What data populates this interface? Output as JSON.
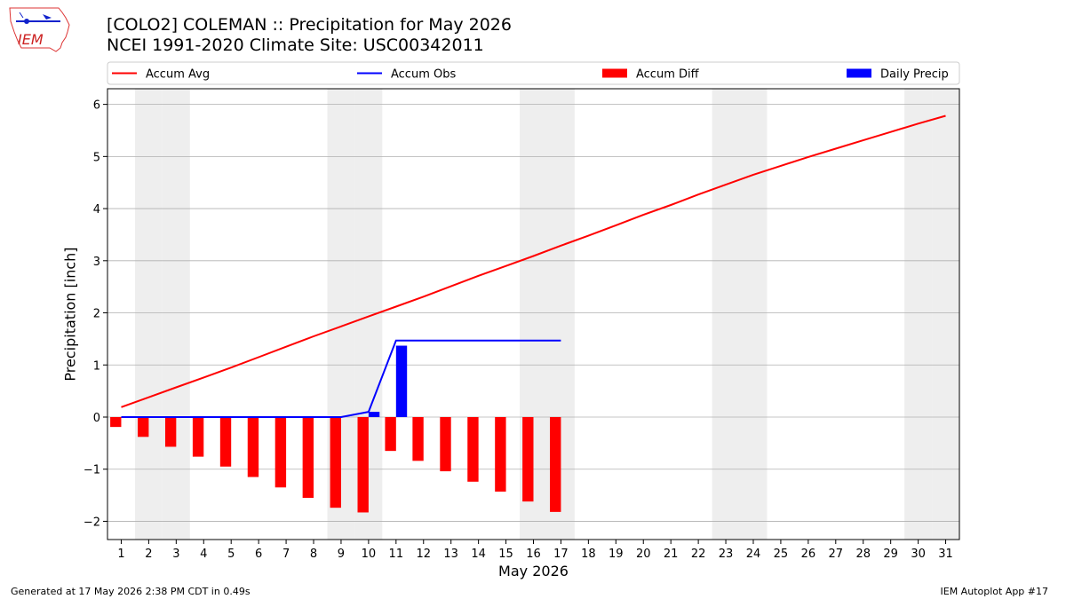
{
  "header": {
    "title": "[COLO2] COLEMAN :: Precipitation for May 2026",
    "subtitle": "NCEI 1991-2020 Climate Site: USC00342011",
    "logo_text": "IEM"
  },
  "footer": {
    "generated": "Generated at 17 May 2026 2:38 PM CDT in 0.49s",
    "app": "IEM Autoplot App #17"
  },
  "colors": {
    "accum_avg": "#ff0000",
    "accum_obs": "#0000ff",
    "accum_diff": "#ff0000",
    "daily_precip": "#0000ff",
    "weekend_shade": "#eeeeee",
    "grid": "#b0b0b0"
  },
  "chart_data": {
    "type": "bar",
    "title": "[COLO2] COLEMAN :: Precipitation for May 2026",
    "xlabel": "May 2026",
    "ylabel": "Precipitation [inch]",
    "x": [
      1,
      2,
      3,
      4,
      5,
      6,
      7,
      8,
      9,
      10,
      11,
      12,
      13,
      14,
      15,
      16,
      17,
      18,
      19,
      20,
      21,
      22,
      23,
      24,
      25,
      26,
      27,
      28,
      29,
      30,
      31
    ],
    "xlim": [
      0.5,
      31.5
    ],
    "ylim": [
      -2.35,
      6.3
    ],
    "yticks": [
      -2,
      -1,
      0,
      1,
      2,
      3,
      4,
      5,
      6
    ],
    "ytick_labels": [
      "−2",
      "−1",
      "0",
      "1",
      "2",
      "3",
      "4",
      "5",
      "6"
    ],
    "grid": "horizontal",
    "legend": [
      "Accum Avg",
      "Accum Obs",
      "Accum Diff",
      "Daily Precip"
    ],
    "legend_position": "top, above plot",
    "weekend_days": [
      2,
      3,
      9,
      10,
      16,
      17,
      23,
      24,
      30,
      31
    ],
    "series": [
      {
        "name": "Accum Avg",
        "type": "line",
        "x": [
          1,
          2,
          3,
          4,
          5,
          6,
          7,
          8,
          9,
          10,
          11,
          12,
          13,
          14,
          15,
          16,
          17,
          18,
          19,
          20,
          21,
          22,
          23,
          24,
          25,
          26,
          27,
          28,
          29,
          30,
          31
        ],
        "values": [
          0.19,
          0.38,
          0.57,
          0.76,
          0.95,
          1.15,
          1.35,
          1.55,
          1.74,
          1.93,
          2.12,
          2.31,
          2.51,
          2.71,
          2.9,
          3.09,
          3.29,
          3.48,
          3.68,
          3.88,
          4.07,
          4.27,
          4.46,
          4.65,
          4.82,
          4.99,
          5.15,
          5.31,
          5.47,
          5.63,
          5.78
        ]
      },
      {
        "name": "Accum Obs",
        "type": "line",
        "x": [
          1,
          2,
          3,
          4,
          5,
          6,
          7,
          8,
          9,
          10,
          11,
          12,
          13,
          14,
          15,
          16,
          17
        ],
        "values": [
          0.0,
          0.0,
          0.0,
          0.0,
          0.0,
          0.0,
          0.0,
          0.0,
          0.0,
          0.1,
          1.47,
          1.47,
          1.47,
          1.47,
          1.47,
          1.47,
          1.47
        ]
      },
      {
        "name": "Accum Diff",
        "type": "bar",
        "x": [
          1,
          2,
          3,
          4,
          5,
          6,
          7,
          8,
          9,
          10,
          11,
          12,
          13,
          14,
          15,
          16,
          17
        ],
        "values": [
          -0.19,
          -0.38,
          -0.57,
          -0.76,
          -0.95,
          -1.15,
          -1.35,
          -1.55,
          -1.74,
          -1.83,
          -0.65,
          -0.84,
          -1.04,
          -1.24,
          -1.43,
          -1.62,
          -1.82
        ]
      },
      {
        "name": "Daily Precip",
        "type": "bar",
        "x": [
          10,
          11
        ],
        "values": [
          0.1,
          1.37
        ]
      }
    ]
  }
}
